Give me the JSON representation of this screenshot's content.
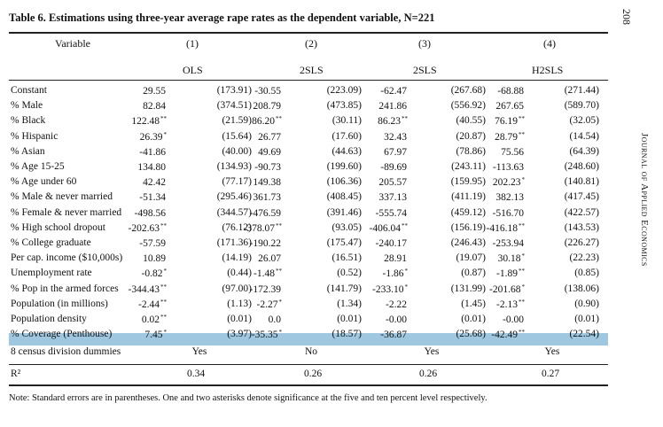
{
  "title": "Table 6. Estimations using three-year average rape rates as the dependent variable, N=221",
  "page_number": "208",
  "journal": "Journal of Applied Economics",
  "header": {
    "variable_label": "Variable",
    "col_numbers": [
      "(1)",
      "(2)",
      "(3)",
      "(4)"
    ],
    "methods": [
      "OLS",
      "2SLS",
      "2SLS",
      "H2SLS"
    ]
  },
  "rows": [
    {
      "label": "Constant",
      "c1": "29.55",
      "s1": "",
      "se1": "(173.91)",
      "c2": "-30.55",
      "s2": "",
      "se2": "(223.09)",
      "c3": "-62.47",
      "s3": "",
      "se3": "(267.68)",
      "c4": "-68.88",
      "s4": "",
      "se4": "(271.44)"
    },
    {
      "label": "% Male",
      "c1": "82.84",
      "s1": "",
      "se1": "(374.51)",
      "c2": "208.79",
      "s2": "",
      "se2": "(473.85)",
      "c3": "241.86",
      "s3": "",
      "se3": "(556.92)",
      "c4": "267.65",
      "s4": "",
      "se4": "(589.70)"
    },
    {
      "label": "% Black",
      "c1": "122.48",
      "s1": "**",
      "se1": "(21.59)",
      "c2": "86.20",
      "s2": "**",
      "se2": "(30.11)",
      "c3": "86.23",
      "s3": "**",
      "se3": "(40.55)",
      "c4": "76.19",
      "s4": "**",
      "se4": "(32.05)"
    },
    {
      "label": "% Hispanic",
      "c1": "26.39",
      "s1": "*",
      "se1": "(15.64)",
      "c2": "26.77",
      "s2": "",
      "se2": "(17.60)",
      "c3": "32.43",
      "s3": "",
      "se3": "(20.87)",
      "c4": "28.79",
      "s4": "**",
      "se4": "(14.54)"
    },
    {
      "label": "% Asian",
      "c1": "-41.86",
      "s1": "",
      "se1": "(40.00)",
      "c2": "49.69",
      "s2": "",
      "se2": "(44.63)",
      "c3": "67.97",
      "s3": "",
      "se3": "(78.86)",
      "c4": "75.56",
      "s4": "",
      "se4": "(64.39)"
    },
    {
      "label": "% Age 15-25",
      "c1": "134.80",
      "s1": "",
      "se1": "(134.93)",
      "c2": "-90.73",
      "s2": "",
      "se2": "(199.60)",
      "c3": "-89.69",
      "s3": "",
      "se3": "(243.11)",
      "c4": "-113.63",
      "s4": "",
      "se4": "(248.60)"
    },
    {
      "label": "% Age under 60",
      "c1": "42.42",
      "s1": "",
      "se1": "(77.17)",
      "c2": "149.38",
      "s2": "",
      "se2": "(106.36)",
      "c3": "205.57",
      "s3": "",
      "se3": "(159.95)",
      "c4": "202.23",
      "s4": "*",
      "se4": "(140.81)"
    },
    {
      "label": "% Male & never married",
      "c1": "-51.34",
      "s1": "",
      "se1": "(295.46)",
      "c2": "361.73",
      "s2": "",
      "se2": "(408.45)",
      "c3": "337.13",
      "s3": "",
      "se3": "(411.19)",
      "c4": "382.13",
      "s4": "",
      "se4": "(417.45)"
    },
    {
      "label": "% Female & never married",
      "c1": "-498.56",
      "s1": "",
      "se1": "(344.57)",
      "c2": "-476.59",
      "s2": "",
      "se2": "(391.46)",
      "c3": "-555.74",
      "s3": "",
      "se3": "(459.12)",
      "c4": "-516.70",
      "s4": "",
      "se4": "(422.57)"
    },
    {
      "label": "% High school dropout",
      "c1": "-202.63",
      "s1": "**",
      "se1": "(76.12)",
      "c2": "-378.07",
      "s2": "**",
      "se2": "(93.05)",
      "c3": "-406.04",
      "s3": "**",
      "se3": "(156.19)",
      "c4": "-416.18",
      "s4": "**",
      "se4": "(143.53)"
    },
    {
      "label": "% College graduate",
      "c1": "-57.59",
      "s1": "",
      "se1": "(171.36)",
      "c2": "-190.22",
      "s2": "",
      "se2": "(175.47)",
      "c3": "-240.17",
      "s3": "",
      "se3": "(246.43)",
      "c4": "-253.94",
      "s4": "",
      "se4": "(226.27)"
    },
    {
      "label": "Per cap. income ($10,000s)",
      "c1": "10.89",
      "s1": "",
      "se1": "(14.19)",
      "c2": "26.07",
      "s2": "",
      "se2": "(16.51)",
      "c3": "28.91",
      "s3": "",
      "se3": "(19.07)",
      "c4": "30.18",
      "s4": "*",
      "se4": "(22.23)"
    },
    {
      "label": "Unemployment rate",
      "c1": "-0.82",
      "s1": "*",
      "se1": "(0.44)",
      "c2": "-1.48",
      "s2": "**",
      "se2": "(0.52)",
      "c3": "-1.86",
      "s3": "*",
      "se3": "(0.87)",
      "c4": "-1.89",
      "s4": "**",
      "se4": "(0.85)"
    },
    {
      "label": "% Pop in the armed forces",
      "c1": "-344.43",
      "s1": "**",
      "se1": "(97.00)",
      "c2": "-172.39",
      "s2": "",
      "se2": "(141.79)",
      "c3": "-233.10",
      "s3": "*",
      "se3": "(131.99)",
      "c4": "-201.68",
      "s4": "*",
      "se4": "(138.06)"
    },
    {
      "label": "Population (in millions)",
      "c1": "-2.44",
      "s1": "**",
      "se1": "(1.13)",
      "c2": "-2.27",
      "s2": "*",
      "se2": "(1.34)",
      "c3": "-2.22",
      "s3": "",
      "se3": "(1.45)",
      "c4": "-2.13",
      "s4": "**",
      "se4": "(0.90)"
    },
    {
      "label": "Population density",
      "c1": "0.02",
      "s1": "**",
      "se1": "(0.01)",
      "c2": "0.0",
      "s2": "",
      "se2": "(0.01)",
      "c3": "-0.00",
      "s3": "",
      "se3": "(0.01)",
      "c4": "-0.00",
      "s4": "",
      "se4": "(0.01)"
    },
    {
      "label": "% Coverage (Penthouse)",
      "c1": "7.45",
      "s1": "*",
      "se1": "(3.97)",
      "c2": "-35.35",
      "s2": "*",
      "se2": "(18.57)",
      "c3": "-36.87",
      "s3": "",
      "se3": "(25.68)",
      "c4": "-42.49",
      "s4": "**",
      "se4": "(22.54)"
    }
  ],
  "dummies": {
    "label": "8 census division dummies",
    "values": [
      "Yes",
      "No",
      "Yes",
      "Yes"
    ]
  },
  "r2": {
    "label": "R²",
    "values": [
      "0.34",
      "0.26",
      "0.26",
      "0.27"
    ]
  },
  "note": "Note: Standard errors are in parentheses. One and two asterisks denote significance at the five and ten percent level respectively."
}
